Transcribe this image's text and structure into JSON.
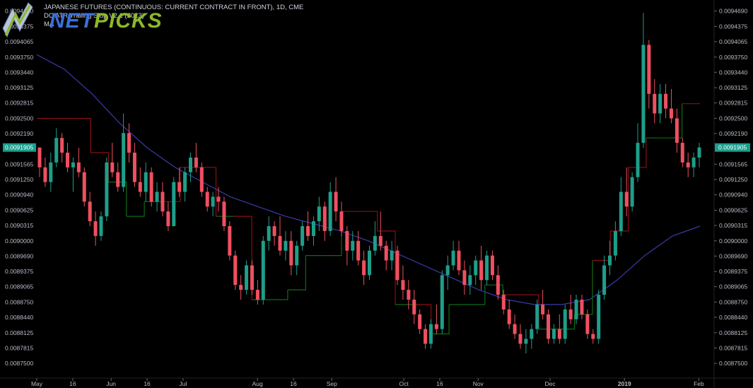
{
  "header": {
    "symbol_line": "JAPANESE FUTURES (CONTINUOUS: CURRENT CONTRACT IN FRONT), 1D, CME",
    "indicator_line": "DC ATR Trailing Stop V2.1 (2013)",
    "ma_line": "MA"
  },
  "logo": {
    "text": "NETPICKS",
    "color": "#3b6fd8",
    "accent": "#8bb82b"
  },
  "colors": {
    "up": "#1f9e89",
    "down": "#ef5060",
    "ma": "#3a3aa8",
    "stop_long": "#0f6b14",
    "stop_short": "#8a0f14",
    "last_bg": "#1a9e8c",
    "axis_text": "#b8bcc6"
  },
  "price_axis": {
    "ticks": [
      "0.0094690",
      "0.0094375",
      "0.0094065",
      "0.0093750",
      "0.0093440",
      "0.0093125",
      "0.0092815",
      "0.0092500",
      "0.0092190",
      "0.0091565",
      "0.0091250",
      "0.0090940",
      "0.0090625",
      "0.0090315",
      "0.0090000",
      "0.0089690",
      "0.0089375",
      "0.0089065",
      "0.0088750",
      "0.0088440",
      "0.0088125",
      "0.0087815",
      "0.0087500"
    ],
    "last_price": "0.0091905"
  },
  "date_axis": {
    "labels": [
      "May",
      "16",
      "Jun",
      "16",
      "Jul",
      "Aug",
      "16",
      "Sep",
      "Oct",
      "16",
      "Nov",
      "Dec",
      "2019",
      "Feb"
    ]
  },
  "chart_data": {
    "type": "candlestick",
    "x_range": [
      "2018-05-01",
      "2019-01-31"
    ],
    "ylim": [
      0.00873,
      0.00948
    ],
    "grid": false,
    "candles_start": "2018-05-01",
    "candles_end": "2019-01-30",
    "ohlc": [
      [
        0.0091905,
        0.00919,
        0.00913,
        0.00915
      ],
      [
        0.00915,
        0.00917,
        0.00911,
        0.00912
      ],
      [
        0.00912,
        0.00918,
        0.0091,
        0.00916
      ],
      [
        0.00916,
        0.00923,
        0.00915,
        0.00921
      ],
      [
        0.00921,
        0.00922,
        0.00916,
        0.00918
      ],
      [
        0.00918,
        0.0092,
        0.00914,
        0.00915
      ],
      [
        0.00915,
        0.00917,
        0.0091,
        0.00916
      ],
      [
        0.00916,
        0.00919,
        0.00913,
        0.00914
      ],
      [
        0.00914,
        0.00915,
        0.00907,
        0.00908
      ],
      [
        0.00908,
        0.0091,
        0.00903,
        0.00904
      ],
      [
        0.00904,
        0.00906,
        0.00899,
        0.00901
      ],
      [
        0.00901,
        0.00906,
        0.009,
        0.00905
      ],
      [
        0.00905,
        0.00917,
        0.00904,
        0.00916
      ],
      [
        0.00916,
        0.0092,
        0.00913,
        0.00914
      ],
      [
        0.00914,
        0.00916,
        0.0091,
        0.00911
      ],
      [
        0.00911,
        0.00926,
        0.0091,
        0.00922
      ],
      [
        0.00922,
        0.00924,
        0.00916,
        0.00918
      ],
      [
        0.00918,
        0.0092,
        0.00911,
        0.00912
      ],
      [
        0.00912,
        0.00915,
        0.00909,
        0.0091
      ],
      [
        0.0091,
        0.00916,
        0.00908,
        0.00914
      ],
      [
        0.00914,
        0.00915,
        0.00907,
        0.00908
      ],
      [
        0.00908,
        0.00912,
        0.00906,
        0.0091
      ],
      [
        0.0091,
        0.00912,
        0.00905,
        0.00906
      ],
      [
        0.00906,
        0.00908,
        0.00902,
        0.00903
      ],
      [
        0.00903,
        0.00913,
        0.00903,
        0.00912
      ],
      [
        0.00912,
        0.00915,
        0.00909,
        0.0091
      ],
      [
        0.0091,
        0.00915,
        0.00908,
        0.00914
      ],
      [
        0.00914,
        0.00918,
        0.00912,
        0.00917
      ],
      [
        0.00917,
        0.0092,
        0.00914,
        0.00915
      ],
      [
        0.00915,
        0.00916,
        0.00909,
        0.0091
      ],
      [
        0.0091,
        0.00911,
        0.00906,
        0.00907
      ],
      [
        0.00907,
        0.0091,
        0.00905,
        0.00909
      ],
      [
        0.00909,
        0.00911,
        0.00906,
        0.00908
      ],
      [
        0.00908,
        0.00909,
        0.00902,
        0.00903
      ],
      [
        0.00903,
        0.00904,
        0.00896,
        0.00897
      ],
      [
        0.00897,
        0.00898,
        0.0089,
        0.00891
      ],
      [
        0.00891,
        0.00893,
        0.00888,
        0.0089
      ],
      [
        0.0089,
        0.00896,
        0.00889,
        0.00895
      ],
      [
        0.00895,
        0.00896,
        0.00889,
        0.0089
      ],
      [
        0.0089,
        0.00892,
        0.00887,
        0.00888
      ],
      [
        0.00888,
        0.00901,
        0.00887,
        0.009
      ],
      [
        0.009,
        0.00905,
        0.00898,
        0.00903
      ],
      [
        0.00903,
        0.00904,
        0.00899,
        0.00901
      ],
      [
        0.00901,
        0.00905,
        0.00897,
        0.00898
      ],
      [
        0.00898,
        0.00902,
        0.00896,
        0.009
      ],
      [
        0.009,
        0.00902,
        0.00893,
        0.00895
      ],
      [
        0.00895,
        0.009,
        0.00893,
        0.00899
      ],
      [
        0.00899,
        0.00904,
        0.00898,
        0.00903
      ],
      [
        0.00903,
        0.00906,
        0.009,
        0.00901
      ],
      [
        0.00901,
        0.00905,
        0.00899,
        0.00904
      ],
      [
        0.00904,
        0.00909,
        0.00902,
        0.00907
      ],
      [
        0.00907,
        0.00908,
        0.009,
        0.00902
      ],
      [
        0.00902,
        0.00912,
        0.00901,
        0.0091
      ],
      [
        0.0091,
        0.00913,
        0.00904,
        0.00906
      ],
      [
        0.00906,
        0.00908,
        0.00901,
        0.00902
      ],
      [
        0.00902,
        0.00903,
        0.00895,
        0.00898
      ],
      [
        0.00898,
        0.00902,
        0.00896,
        0.009
      ],
      [
        0.009,
        0.00902,
        0.00895,
        0.00896
      ],
      [
        0.00896,
        0.00898,
        0.00891,
        0.00893
      ],
      [
        0.00893,
        0.00899,
        0.00892,
        0.00898
      ],
      [
        0.00898,
        0.00904,
        0.00897,
        0.00901
      ],
      [
        0.00901,
        0.00906,
        0.00898,
        0.00899
      ],
      [
        0.00899,
        0.009,
        0.00894,
        0.00896
      ],
      [
        0.00896,
        0.009,
        0.00894,
        0.00898
      ],
      [
        0.00898,
        0.00899,
        0.00891,
        0.00892
      ],
      [
        0.00892,
        0.00895,
        0.00888,
        0.0089
      ],
      [
        0.0089,
        0.00892,
        0.00886,
        0.00888
      ],
      [
        0.00888,
        0.0089,
        0.00883,
        0.00885
      ],
      [
        0.00885,
        0.00886,
        0.00881,
        0.00882
      ],
      [
        0.00882,
        0.00883,
        0.00878,
        0.00879
      ],
      [
        0.00879,
        0.00884,
        0.00878,
        0.00883
      ],
      [
        0.00883,
        0.00887,
        0.00881,
        0.00882
      ],
      [
        0.00882,
        0.00894,
        0.00881,
        0.00893
      ],
      [
        0.00893,
        0.00897,
        0.0089,
        0.00895
      ],
      [
        0.00895,
        0.009,
        0.00894,
        0.00898
      ],
      [
        0.00898,
        0.009,
        0.00893,
        0.00894
      ],
      [
        0.00894,
        0.00896,
        0.00889,
        0.00891
      ],
      [
        0.00891,
        0.00895,
        0.00889,
        0.00893
      ],
      [
        0.00893,
        0.00897,
        0.00891,
        0.00896
      ],
      [
        0.00896,
        0.00899,
        0.0089,
        0.00892
      ],
      [
        0.00892,
        0.00898,
        0.00891,
        0.00897
      ],
      [
        0.00897,
        0.00898,
        0.00892,
        0.00893
      ],
      [
        0.00893,
        0.00895,
        0.00888,
        0.00889
      ],
      [
        0.00889,
        0.0089,
        0.00885,
        0.00886
      ],
      [
        0.00886,
        0.00888,
        0.00882,
        0.00883
      ],
      [
        0.00883,
        0.00885,
        0.0088,
        0.00881
      ],
      [
        0.00881,
        0.00883,
        0.00878,
        0.00879
      ],
      [
        0.00879,
        0.00882,
        0.00877,
        0.0088
      ],
      [
        0.0088,
        0.00883,
        0.00878,
        0.00882
      ],
      [
        0.00882,
        0.00888,
        0.00881,
        0.00887
      ],
      [
        0.00887,
        0.0089,
        0.00884,
        0.00885
      ],
      [
        0.00885,
        0.00886,
        0.00879,
        0.0088
      ],
      [
        0.0088,
        0.00883,
        0.00879,
        0.00882
      ],
      [
        0.00882,
        0.00885,
        0.00879,
        0.0088
      ],
      [
        0.0088,
        0.00887,
        0.00879,
        0.00886
      ],
      [
        0.00886,
        0.00889,
        0.00883,
        0.00884
      ],
      [
        0.00884,
        0.00889,
        0.00883,
        0.00888
      ],
      [
        0.00888,
        0.00889,
        0.00884,
        0.00885
      ],
      [
        0.00885,
        0.00886,
        0.0088,
        0.00881
      ],
      [
        0.00881,
        0.00882,
        0.00879,
        0.0088
      ],
      [
        0.0088,
        0.0089,
        0.00879,
        0.00889
      ],
      [
        0.00889,
        0.00897,
        0.00888,
        0.00895
      ],
      [
        0.00895,
        0.009,
        0.00893,
        0.00897
      ],
      [
        0.00897,
        0.00904,
        0.00896,
        0.00902
      ],
      [
        0.00902,
        0.00913,
        0.00901,
        0.0091
      ],
      [
        0.0091,
        0.00915,
        0.00905,
        0.00907
      ],
      [
        0.00907,
        0.00914,
        0.00906,
        0.00913
      ],
      [
        0.00913,
        0.00924,
        0.00912,
        0.0092
      ],
      [
        0.0092,
        0.009465,
        0.00919,
        0.0094
      ],
      [
        0.0094,
        0.00941,
        0.00927,
        0.0093
      ],
      [
        0.0093,
        0.00933,
        0.00924,
        0.00926
      ],
      [
        0.00926,
        0.00932,
        0.00924,
        0.0093
      ],
      [
        0.0093,
        0.00932,
        0.00925,
        0.00927
      ],
      [
        0.00927,
        0.00931,
        0.00924,
        0.00925
      ],
      [
        0.00925,
        0.00927,
        0.00918,
        0.0092
      ],
      [
        0.0092,
        0.00921,
        0.00915,
        0.00916
      ],
      [
        0.00916,
        0.00918,
        0.00913,
        0.00915
      ],
      [
        0.00915,
        0.00918,
        0.00913,
        0.00917
      ],
      [
        0.00917,
        0.0092,
        0.00915,
        0.0091905
      ]
    ],
    "ma_values": [
      0.00938,
      0.00935,
      0.0093,
      0.00924,
      0.00919,
      0.00915,
      0.00912,
      0.00909,
      0.00907,
      0.00905,
      0.009035,
      0.00902,
      0.009,
      0.008975,
      0.00895,
      0.008925,
      0.0089,
      0.00888,
      0.00887,
      0.00887,
      0.00888,
      0.00892,
      0.00897,
      0.00901,
      0.00903
    ],
    "stop_values": [
      0.00925,
      0.00925,
      0.00925,
      0.00918,
      0.00912,
      0.00905,
      0.00908,
      0.00908,
      0.00915,
      0.00915,
      0.00905,
      0.00905,
      0.00888,
      0.00888,
      0.0089,
      0.00897,
      0.00897,
      0.00906,
      0.00906,
      0.00902,
      0.00887,
      0.00887,
      0.00881,
      0.00887,
      0.00887,
      0.00891,
      0.00889,
      0.00889,
      0.00882,
      0.00882,
      0.00885,
      0.00896,
      0.00902,
      0.00915,
      0.00921,
      0.00921,
      0.00928,
      0.00928
    ]
  }
}
